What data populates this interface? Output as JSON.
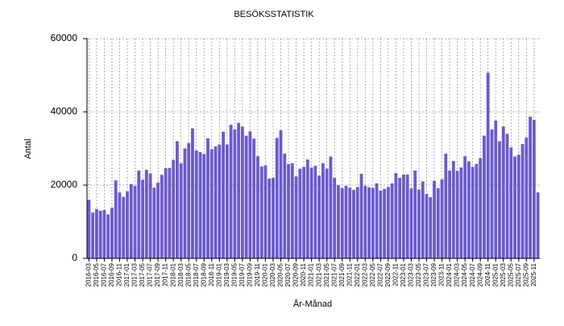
{
  "chart_data": {
    "type": "bar",
    "title": "BESÖKSSTATISTIK",
    "x_label": "År-Månad",
    "y_label": "Antal",
    "categories": [
      "2016-03",
      null,
      "2016-05",
      null,
      "2016-07",
      null,
      "2016-09",
      null,
      "2016-11",
      null,
      "2017-01",
      null,
      "2017-03",
      null,
      "2017-05",
      null,
      "2017-07",
      null,
      "2017-09",
      null,
      "2017-11",
      null,
      "2018-01",
      null,
      "2018-03",
      null,
      "2018-05",
      null,
      "2018-07",
      null,
      "2018-09",
      null,
      "2018-11",
      null,
      "2019-01",
      null,
      "2019-03",
      null,
      "2019-05",
      null,
      "2019-07",
      null,
      "2019-09",
      null,
      "2019-11",
      null,
      "2020-01",
      null,
      "2020-03",
      null,
      "2020-05",
      null,
      "2020-07",
      null,
      "2020-09",
      null,
      "2020-11",
      null,
      "2021-01",
      null,
      "2021-03",
      null,
      "2021-05",
      null,
      "2021-07",
      null,
      "2021-09",
      null,
      "2021-11",
      null,
      "2022-01",
      null,
      "2022-03",
      null,
      "2022-05",
      null,
      "2022-07",
      null,
      "2022-09",
      null,
      "2022-11",
      null,
      "2023-01",
      null,
      "2023-03",
      null,
      "2023-05",
      null,
      "2023-07",
      null,
      "2023-09",
      null,
      "2023-11",
      null,
      "2024-01",
      null,
      "2024-03",
      null,
      "2024-05",
      null,
      "2024-07",
      null,
      "2024-09",
      null,
      "2024-11",
      null,
      "2025-01",
      null,
      "2025-03",
      null,
      "2025-05",
      null,
      "2025-07",
      null,
      "2025-09",
      null,
      "2025-11",
      null
    ],
    "values": [
      16000,
      12500,
      13500,
      13000,
      13200,
      12000,
      13800,
      21300,
      18000,
      16800,
      18300,
      20300,
      19800,
      24000,
      21500,
      24200,
      23200,
      19300,
      20700,
      22800,
      24600,
      24700,
      26900,
      32000,
      26000,
      30000,
      31500,
      35500,
      29500,
      29000,
      28500,
      32800,
      29800,
      30600,
      31100,
      34600,
      31100,
      36500,
      35200,
      37000,
      36000,
      33500,
      34700,
      32700,
      27900,
      25100,
      25400,
      21800,
      22000,
      32900,
      35000,
      28600,
      25800,
      26000,
      22400,
      24500,
      25000,
      27000,
      24800,
      25300,
      22600,
      26000,
      24500,
      27800,
      22000,
      20000,
      19200,
      19800,
      19300,
      18700,
      19500,
      23100,
      19800,
      19400,
      19200,
      20500,
      18500,
      19000,
      19500,
      20500,
      23300,
      22000,
      22900,
      22900,
      19100,
      24000,
      18800,
      21000,
      17600,
      16700,
      21200,
      19200,
      21600,
      28600,
      24000,
      26600,
      23900,
      24800,
      27900,
      26500,
      25000,
      25800,
      27400,
      33500,
      50700,
      35200,
      37600,
      32000,
      36000,
      34000,
      30300,
      27800,
      28300,
      31200,
      33000,
      38700,
      37800,
      18000
    ],
    "color": "#6a5acd",
    "ylim": [
      0,
      60000
    ],
    "yticks": [
      0,
      20000,
      40000,
      60000
    ],
    "grid": true
  }
}
